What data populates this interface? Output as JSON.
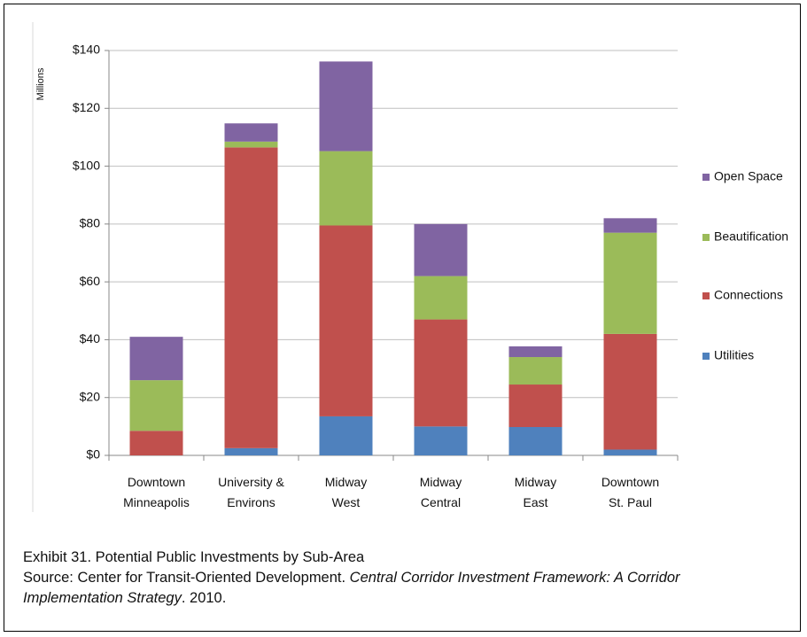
{
  "chart_data": {
    "type": "stacked_bar",
    "y_label": "Millions",
    "categories": [
      "Downtown\nMinneapolis",
      "University &\nEnvirons",
      "Midway\nWest",
      "Midway\nCentral",
      "Midway\nEast",
      "Downtown\nSt. Paul"
    ],
    "series": [
      {
        "name": "Utilities",
        "color": "#4f81bd",
        "values": [
          0,
          2.5,
          13.5,
          10,
          9.8,
          2
        ]
      },
      {
        "name": "Connections",
        "color": "#c0504d",
        "values": [
          8.5,
          104,
          66,
          37,
          14.7,
          40
        ]
      },
      {
        "name": "Beautification",
        "color": "#9bbb59",
        "values": [
          17.5,
          2,
          25.7,
          15,
          9.5,
          35
        ]
      },
      {
        "name": "Open Space",
        "color": "#8064a2",
        "values": [
          15,
          6.3,
          31,
          18,
          3.7,
          5
        ]
      }
    ],
    "ylim": [
      0,
      140
    ],
    "yticks": [
      {
        "value": 0,
        "label": "$0"
      },
      {
        "value": 20,
        "label": "$20"
      },
      {
        "value": 40,
        "label": "$40"
      },
      {
        "value": 60,
        "label": "$60"
      },
      {
        "value": 80,
        "label": "$80"
      },
      {
        "value": 100,
        "label": "$100"
      },
      {
        "value": 120,
        "label": "$120"
      },
      {
        "value": 140,
        "label": "$140"
      }
    ],
    "grid": true,
    "legend": "right"
  },
  "caption": {
    "title": "Exhibit 31. Potential Public Investments by Sub-Area",
    "source_prefix": "Source: Center for Transit-Oriented Development. ",
    "source_work": "Central Corridor Investment Framework: A Corridor Implementation Strategy",
    "source_suffix": ". 2010."
  }
}
